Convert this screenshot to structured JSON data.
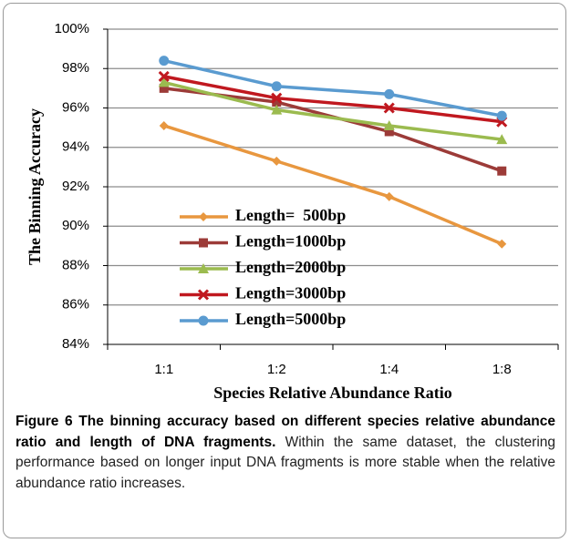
{
  "chart_data": {
    "type": "line",
    "categories": [
      "1:1",
      "1:2",
      "1:4",
      "1:8"
    ],
    "series": [
      {
        "name": "Length=  500bp",
        "color": "#e8973f",
        "marker": "diamond",
        "values": [
          95.1,
          93.3,
          91.5,
          89.1
        ]
      },
      {
        "name": "Length=1000bp",
        "color": "#9c3b38",
        "marker": "square",
        "values": [
          97.0,
          96.3,
          94.8,
          92.8
        ]
      },
      {
        "name": "Length=2000bp",
        "color": "#9bbb4f",
        "marker": "triangle",
        "values": [
          97.3,
          95.9,
          95.1,
          94.4
        ]
      },
      {
        "name": "Length=3000bp",
        "color": "#c0181f",
        "marker": "x",
        "values": [
          97.6,
          96.5,
          96.0,
          95.3
        ]
      },
      {
        "name": "Length=5000bp",
        "color": "#5a9bd0",
        "marker": "circle",
        "values": [
          98.4,
          97.1,
          96.7,
          95.6
        ]
      }
    ],
    "ylim": [
      84,
      100
    ],
    "yticks": [
      {
        "value": 84,
        "label": "84%"
      },
      {
        "value": 86,
        "label": "86%"
      },
      {
        "value": 88,
        "label": "88%"
      },
      {
        "value": 90,
        "label": "90%"
      },
      {
        "value": 92,
        "label": "92%"
      },
      {
        "value": 94,
        "label": "94%"
      },
      {
        "value": 96,
        "label": "96%"
      },
      {
        "value": 98,
        "label": "98%"
      },
      {
        "value": 100,
        "label": "100%"
      }
    ],
    "ylabel": "The Binning Accuracy",
    "xlabel": "Species Relative Abundance Ratio",
    "grid": true
  },
  "caption": {
    "label": "Figure 6",
    "title": "The binning accuracy based on different species relative abundance ratio and length of DNA fragments.",
    "text": "Within the same dataset, the clustering performance based on longer input DNA fragments is more stable when the relative abundance ratio increases."
  }
}
